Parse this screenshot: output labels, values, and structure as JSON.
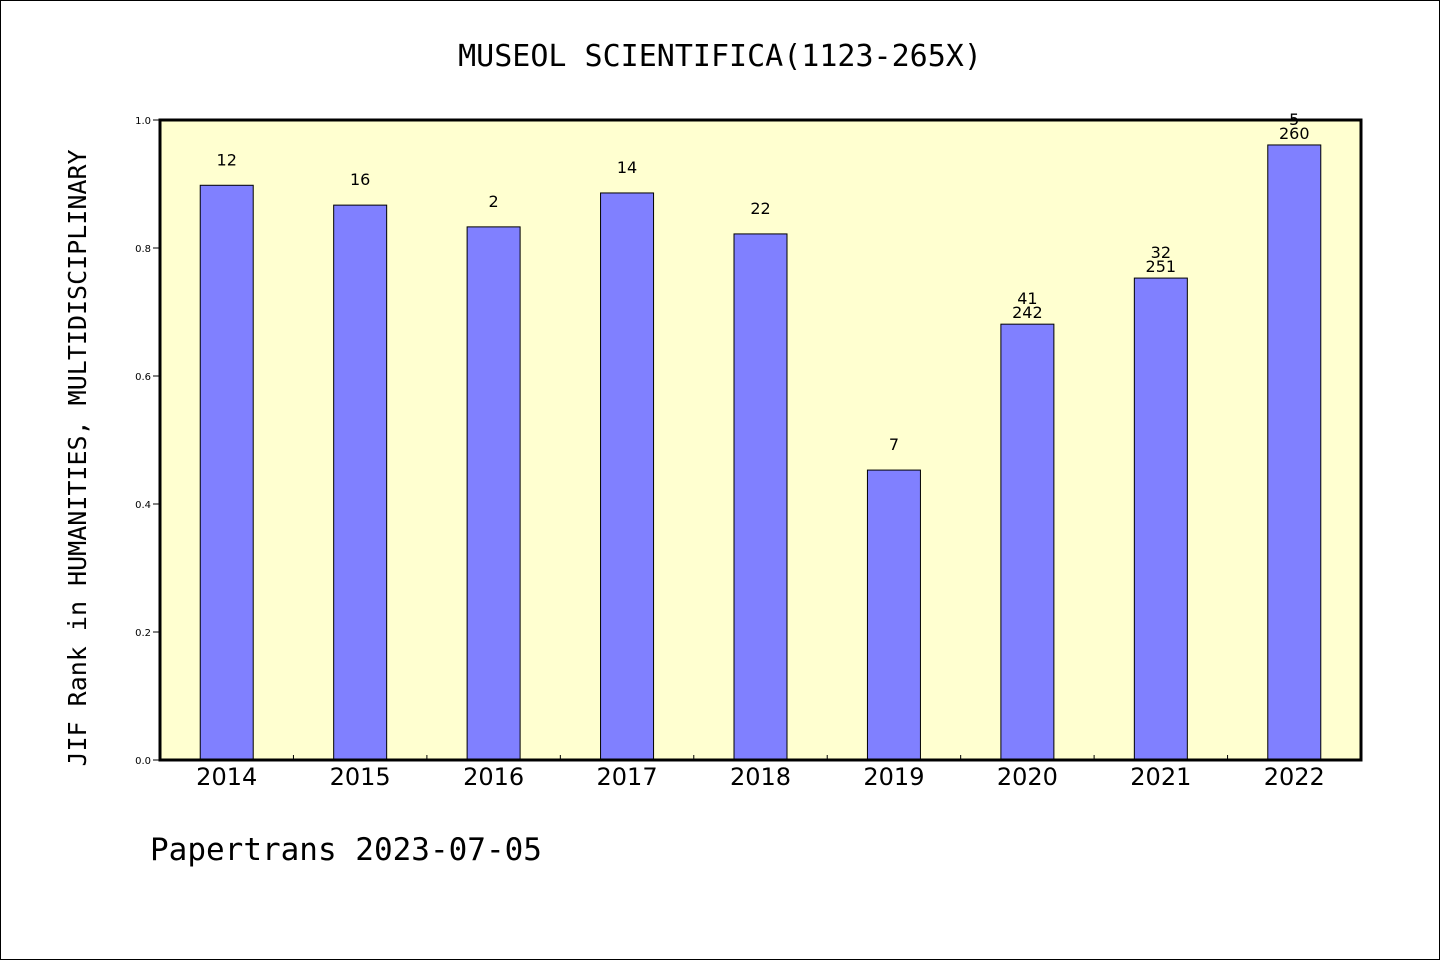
{
  "colors": {
    "background": "#ffffff",
    "plot_background": "#ffffd0",
    "bar_fill": "#8080ff",
    "bar_stroke": "#000000",
    "axis": "#000000"
  },
  "footer": {
    "text": "Papertrans 2023-07-05"
  },
  "chart_data": {
    "type": "bar",
    "title": "MUSEOL SCIENTIFICA(1123-265X)",
    "xlabel": "",
    "ylabel": "JIF Rank in HUMANITIES, MULTIDISCIPLINARY",
    "ylim": [
      0,
      1.0
    ],
    "yticks": [
      "0.0",
      "0.2",
      "0.4",
      "0.6",
      "0.8",
      "1.0"
    ],
    "grid": false,
    "categories": [
      "2014",
      "2015",
      "2016",
      "2017",
      "2018",
      "2019",
      "2020",
      "2021",
      "2022"
    ],
    "values": [
      0.898,
      0.867,
      0.833,
      0.886,
      0.822,
      0.453,
      0.681,
      0.753,
      0.961
    ],
    "labels": [
      [
        "12"
      ],
      [
        "16"
      ],
      [
        "2"
      ],
      [
        "14"
      ],
      [
        "22"
      ],
      [
        "7"
      ],
      [
        "41",
        "242"
      ],
      [
        "32",
        "251"
      ],
      [
        "5",
        "260"
      ]
    ]
  }
}
